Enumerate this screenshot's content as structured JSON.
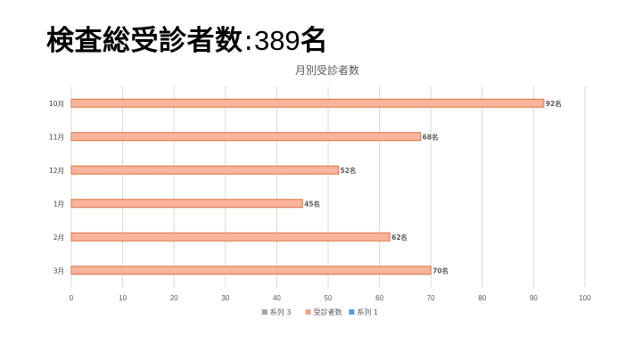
{
  "headline": {
    "label": "検査総受診者数",
    "separator": ":",
    "number": "389",
    "unit": "名"
  },
  "chart_data": {
    "type": "bar",
    "orientation": "horizontal",
    "title": "月別受診者数",
    "xlabel": "",
    "ylabel": "",
    "categories": [
      "10月",
      "11月",
      "12月",
      "1月",
      "2月",
      "3月"
    ],
    "series": [
      {
        "name": "受診者数",
        "values": [
          92,
          68,
          52,
          45,
          62,
          70
        ],
        "color": "#F8B49C",
        "stroke": "#E0703F"
      }
    ],
    "data_label_suffix": "名",
    "xlim": [
      0,
      100
    ],
    "xticks": [
      0,
      10,
      20,
      30,
      40,
      50,
      60,
      70,
      80,
      90,
      100
    ],
    "grid": "vertical",
    "legend": {
      "position": "bottom",
      "entries": [
        {
          "label": "系列 3",
          "color": "#A5A5A5"
        },
        {
          "label": "受診者数",
          "color": "#F4A582"
        },
        {
          "label": "系列 1",
          "color": "#5B9BD5"
        }
      ]
    }
  }
}
